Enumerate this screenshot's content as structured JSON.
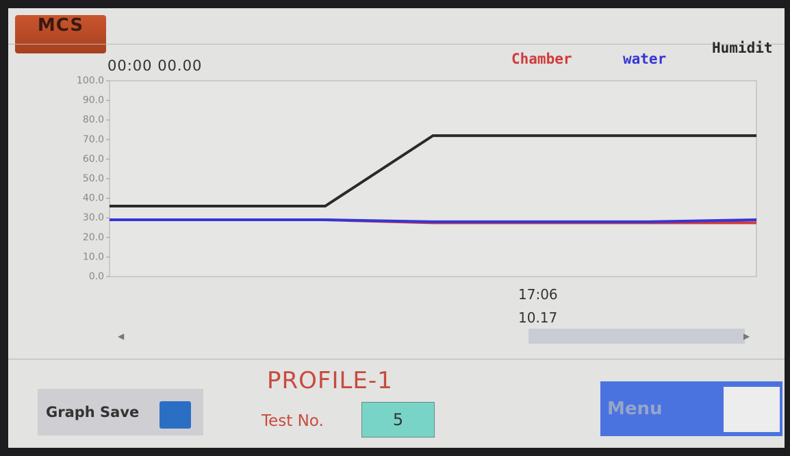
{
  "logo": "MCS",
  "elapsed": "00:00 00.00",
  "chart_data": {
    "type": "line",
    "categories": [
      null,
      null,
      null,
      null,
      null,
      null,
      null
    ],
    "series": [
      {
        "name": "Chamber",
        "color": "#d03a3a",
        "values": [
          29,
          29,
          29,
          27.5,
          27.5,
          27.5,
          27.5
        ]
      },
      {
        "name": "water",
        "color": "#3535d8",
        "values": [
          29,
          29,
          29,
          28,
          28,
          28,
          29
        ]
      },
      {
        "name": "Humidit",
        "color": "#2a2a2a",
        "values": [
          36,
          36,
          36,
          72,
          72,
          72,
          72
        ]
      }
    ],
    "ylim": [
      0,
      100
    ],
    "yticks": [
      {
        "value": 0,
        "label": "0.0"
      },
      {
        "value": 10,
        "label": "10.0"
      },
      {
        "value": 20,
        "label": "20.0"
      },
      {
        "value": 30,
        "label": "30.0"
      },
      {
        "value": 40,
        "label": "40.0"
      },
      {
        "value": 50,
        "label": "50.0"
      },
      {
        "value": 60,
        "label": "60.0"
      },
      {
        "value": 70,
        "label": "70.0"
      },
      {
        "value": 80,
        "label": "80.0"
      },
      {
        "value": 90,
        "label": "90.0"
      },
      {
        "value": 100,
        "label": "100.0"
      }
    ],
    "grid": false
  },
  "cursor": {
    "time": "17:06",
    "value": "10.17"
  },
  "profile": "PROFILE-1",
  "test_label": "Test No.",
  "test_no": "5",
  "buttons": {
    "graph_save": "Graph Save",
    "menu": "Menu"
  }
}
